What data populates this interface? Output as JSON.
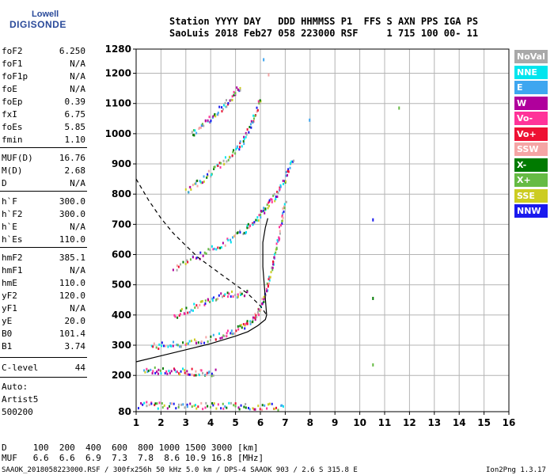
{
  "logo": {
    "line1": "Lowell",
    "line2": "DIGISONDE"
  },
  "header": {
    "line1": "Station YYYY DAY   DDD HHMMSS P1  FFS S AXN PPS IGA PS",
    "line2": "SaoLuis 2018 Feb27 058 223000 RSF     1 715 100 00- 11"
  },
  "params": [
    {
      "label": "foF2",
      "value": "6.250"
    },
    {
      "label": "foF1",
      "value": "N/A"
    },
    {
      "label": "foF1p",
      "value": "N/A"
    },
    {
      "label": "foE",
      "value": "N/A"
    },
    {
      "label": "foEp",
      "value": "0.39"
    },
    {
      "label": "fxI",
      "value": "6.75"
    },
    {
      "label": "foEs",
      "value": "5.85"
    },
    {
      "label": "fmin",
      "value": "1.10"
    },
    {
      "label": "MUF(D)",
      "value": "16.76"
    },
    {
      "label": "M(D)",
      "value": "2.68"
    },
    {
      "label": "D",
      "value": "N/A"
    },
    {
      "label": "h`F",
      "value": "300.0"
    },
    {
      "label": "h`F2",
      "value": "300.0"
    },
    {
      "label": "h`E",
      "value": "N/A"
    },
    {
      "label": "h`Es",
      "value": "110.0"
    },
    {
      "label": "hmF2",
      "value": "385.1"
    },
    {
      "label": "hmF1",
      "value": "N/A"
    },
    {
      "label": "hmE",
      "value": "110.0"
    },
    {
      "label": "yF2",
      "value": "120.0"
    },
    {
      "label": "yF1",
      "value": "N/A"
    },
    {
      "label": "yE",
      "value": "20.0"
    },
    {
      "label": "B0",
      "value": "101.4"
    },
    {
      "label": "B1",
      "value": "3.74"
    }
  ],
  "clevel": {
    "label": "C-level",
    "value": "44"
  },
  "auto": {
    "line1": "Auto:",
    "line2": "Artist5",
    "line3": "500200"
  },
  "legend": [
    {
      "label": "NoVal",
      "color": "#a9a9a9"
    },
    {
      "label": "NNE",
      "color": "#00e5ee"
    },
    {
      "label": "E",
      "color": "#3ea6f0"
    },
    {
      "label": "W",
      "color": "#b0009c"
    },
    {
      "label": "Vo-",
      "color": "#ff3399"
    },
    {
      "label": "Vo+",
      "color": "#ee1133"
    },
    {
      "label": "SSW",
      "color": "#f5a5a5"
    },
    {
      "label": "X-",
      "color": "#007a00"
    },
    {
      "label": "X+",
      "color": "#66bb44"
    },
    {
      "label": "SSE",
      "color": "#cccc22"
    },
    {
      "label": "NNW",
      "color": "#1a1aee"
    }
  ],
  "chart_data": {
    "type": "scatter",
    "xlim": [
      1,
      16
    ],
    "ylim": [
      80,
      1280
    ],
    "x_ticks": [
      "1",
      "2",
      "3",
      "4",
      "5",
      "6",
      "7",
      "8",
      "9",
      "10",
      "11",
      "12",
      "13",
      "14",
      "15",
      "16"
    ],
    "y_ticks": [
      "80",
      "200",
      "300",
      "400",
      "500",
      "600",
      "700",
      "800",
      "900",
      "1000",
      "1100",
      "1200",
      "1280"
    ],
    "y_tick_values": [
      80,
      200,
      300,
      400,
      500,
      600,
      700,
      800,
      900,
      1000,
      1100,
      1200,
      1280
    ],
    "grid": true,
    "traces": [
      {
        "name": "F2 trace (1st)",
        "points": [
          [
            1.6,
            300
          ],
          [
            2.5,
            305
          ],
          [
            3.5,
            315
          ],
          [
            4.5,
            340
          ],
          [
            5.2,
            360
          ],
          [
            5.7,
            390
          ],
          [
            6.0,
            430
          ],
          [
            6.2,
            480
          ],
          [
            6.4,
            540
          ],
          [
            6.6,
            620
          ],
          [
            6.8,
            700
          ],
          [
            7.0,
            780
          ]
        ]
      },
      {
        "name": "F2 trace (2nd hop)",
        "points": [
          [
            2.5,
            560
          ],
          [
            3.5,
            600
          ],
          [
            4.5,
            640
          ],
          [
            5.3,
            680
          ],
          [
            5.8,
            720
          ],
          [
            6.2,
            760
          ],
          [
            6.6,
            800
          ],
          [
            7.0,
            860
          ],
          [
            7.3,
            920
          ]
        ]
      },
      {
        "name": "upper trace",
        "points": [
          [
            3.0,
            810
          ],
          [
            3.6,
            850
          ],
          [
            4.2,
            890
          ],
          [
            4.8,
            930
          ],
          [
            5.3,
            980
          ],
          [
            5.7,
            1050
          ],
          [
            6.0,
            1120
          ]
        ]
      },
      {
        "name": "SSE group",
        "points": [
          [
            3.2,
            1000
          ],
          [
            3.8,
            1040
          ],
          [
            4.3,
            1080
          ],
          [
            4.8,
            1120
          ],
          [
            5.2,
            1160
          ]
        ]
      },
      {
        "name": "E trace",
        "points": [
          [
            1.3,
            220
          ],
          [
            2.0,
            218
          ],
          [
            2.8,
            215
          ],
          [
            3.5,
            214
          ],
          [
            4.2,
            212
          ]
        ]
      },
      {
        "name": "base band",
        "points": [
          [
            1.1,
            105
          ],
          [
            2.0,
            105
          ],
          [
            3.0,
            104
          ],
          [
            4.0,
            103
          ],
          [
            5.0,
            102
          ],
          [
            6.0,
            100
          ],
          [
            7.0,
            100
          ]
        ]
      },
      {
        "name": "mid trace",
        "points": [
          [
            2.5,
            400
          ],
          [
            3.3,
            430
          ],
          [
            4.0,
            460
          ],
          [
            4.8,
            470
          ],
          [
            5.5,
            480
          ]
        ]
      }
    ],
    "profile_solid": [
      [
        1.0,
        245
      ],
      [
        2.0,
        265
      ],
      [
        3.0,
        285
      ],
      [
        4.0,
        305
      ],
      [
        5.0,
        330
      ],
      [
        5.5,
        345
      ],
      [
        5.9,
        365
      ],
      [
        6.2,
        385
      ],
      [
        6.25,
        400
      ],
      [
        6.1,
        560
      ],
      [
        6.1,
        640
      ],
      [
        6.2,
        690
      ],
      [
        6.3,
        720
      ]
    ],
    "profile_dashed": [
      [
        1.0,
        850
      ],
      [
        1.5,
        780
      ],
      [
        2.0,
        720
      ],
      [
        2.5,
        670
      ],
      [
        3.0,
        630
      ],
      [
        3.5,
        590
      ],
      [
        4.0,
        560
      ],
      [
        4.5,
        530
      ],
      [
        5.0,
        500
      ],
      [
        5.5,
        470
      ],
      [
        6.0,
        430
      ],
      [
        6.25,
        400
      ]
    ],
    "isolated": [
      [
        11.55,
        1090
      ],
      [
        10.5,
        720
      ],
      [
        10.5,
        460
      ],
      [
        10.5,
        240
      ],
      [
        7.95,
        1050
      ],
      [
        6.1,
        1250
      ],
      [
        6.3,
        1200
      ]
    ]
  },
  "footer": {
    "line1": "D     100  200  400  600  800 1000 1500 3000 [km]",
    "line2": "MUF   6.6  6.6  6.9  7.3  7.8  8.6 10.9 16.8 [MHz]",
    "line3": "SAAOK_2018058223000.RSF / 300fx256h 50 kHz 5.0 km / DPS-4 SAAOK 903 / 2.6 S 315.8 E",
    "version": "Ion2Png 1.3.17"
  }
}
